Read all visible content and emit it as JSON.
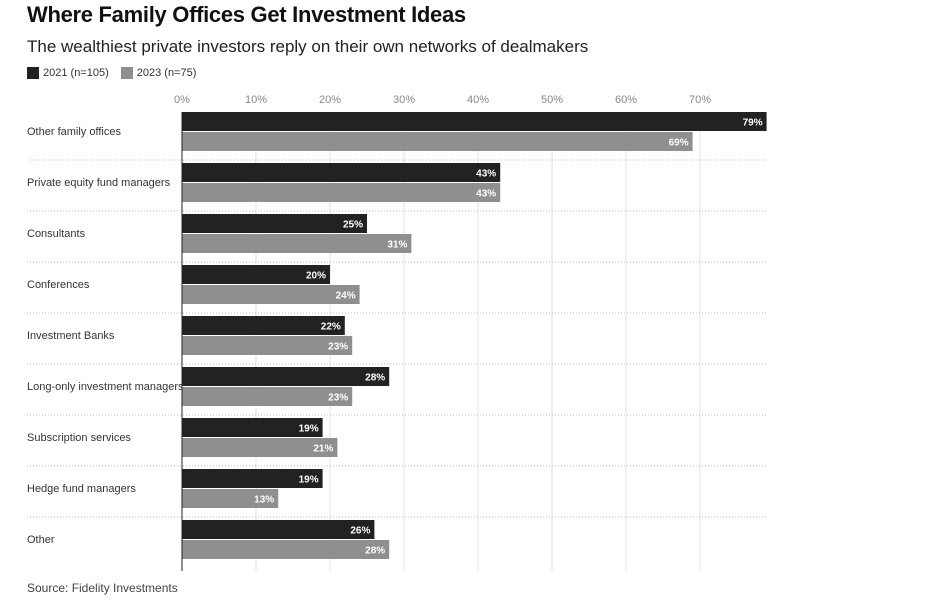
{
  "chart_data": {
    "type": "bar",
    "orientation": "horizontal",
    "title": "Where Family Offices Get Investment Ideas",
    "subtitle": "The wealthiest private investors reply on their own networks of dealmakers",
    "source": "Source: Fidelity Investments",
    "categories": [
      "Other family offices",
      "Private equity fund managers",
      "Consultants",
      "Conferences",
      "Investment Banks",
      "Long-only investment managers",
      "Subscription services",
      "Hedge fund managers",
      "Other"
    ],
    "series": [
      {
        "name": "2021 (n=105)",
        "color": "#222222",
        "values": [
          79,
          43,
          25,
          20,
          22,
          28,
          19,
          19,
          26
        ]
      },
      {
        "name": "2023 (n=75)",
        "color": "#8f8f8f",
        "values": [
          69,
          43,
          31,
          24,
          23,
          23,
          21,
          13,
          28
        ]
      }
    ],
    "xticks": [
      "0%",
      "10%",
      "20%",
      "30%",
      "40%",
      "50%",
      "60%",
      "70%"
    ],
    "xlim": [
      0,
      79
    ],
    "value_suffix": "%",
    "grid": true,
    "legend_position": "top-left"
  }
}
